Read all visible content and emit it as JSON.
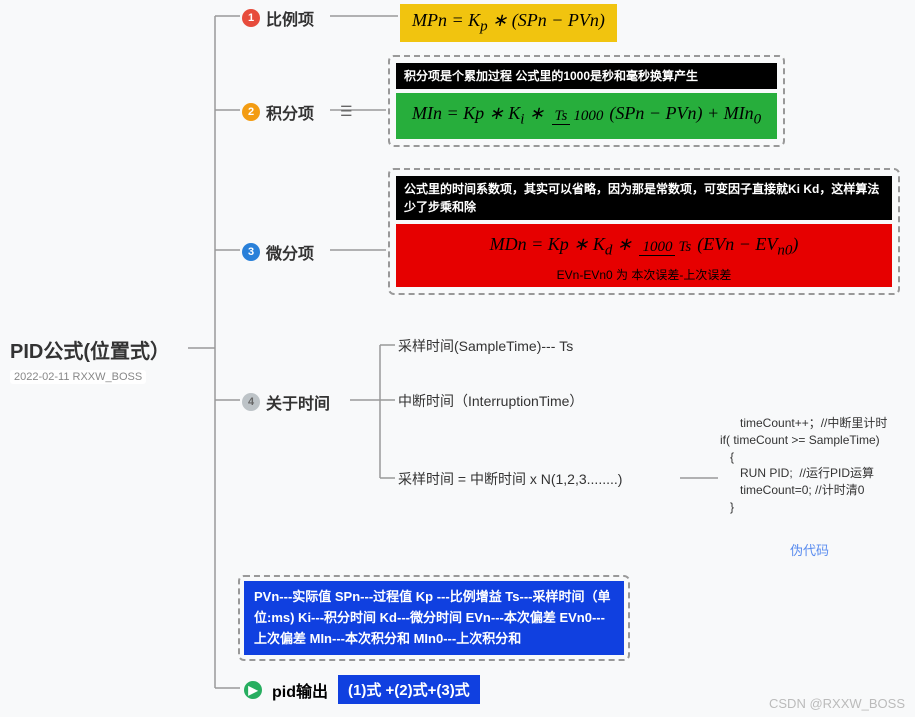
{
  "root": {
    "title": "PID公式(位置式）",
    "subtitle": "2022-02-11 RXXW_BOSS"
  },
  "branches": {
    "b1": {
      "num": "1",
      "label": "比例项",
      "formula_html": "<i>MPn</i> = <i>K<sub>p</sub></i> ∗ (<i>SPn</i> − <i>PVn</i>)"
    },
    "b2": {
      "num": "2",
      "label": "积分项",
      "note": "积分项是个累加过程 公式里的1000是秒和毫秒换算产生",
      "formula_html": "<i>MIn</i> = <i>Kp</i> ∗ <i>K<sub>i</sub></i> ∗ <span class='frac'><span class='top'><i>Ts</i></span><span class='bot'>1000</span></span>(<i>SPn</i> − <i>PVn</i>) + <i>MIn</i><sub>0</sub>"
    },
    "b3": {
      "num": "3",
      "label": "微分项",
      "note": "公式里的时间系数项，其实可以省略，因为那是常数项，可变因子直接就Ki Kd，这样算法少了步乘和除",
      "formula_html": "<i>MDn</i> = <i>Kp</i> ∗ <i>K<sub>d</sub></i> ∗ <span class='frac'><span class='top'>1000</span><span class='bot'><i>Ts</i></span></span>(<i>EVn</i> − <i>EV</i><sub><i>n</i>0</sub>)",
      "subnote": "EVn-EVn0 为 本次误差-上次误差"
    },
    "b4": {
      "num": "4",
      "label": "关于时间",
      "items": {
        "t1": "采样时间(SampleTime)--- Ts",
        "t2": "中断时间（InterruptionTime）",
        "t3": "采样时间 = 中断时间 x  N(1,2,3........)"
      }
    }
  },
  "pseudo": {
    "code": "      timeCount++；//中断里计时\nif( timeCount >= SampleTime)\n   {\n      RUN PID;  //运行PID运算\n      timeCount=0; //计时清0\n   }",
    "label": "伪代码"
  },
  "legend": "PVn---实际值   SPn---过程值  Kp ---比例增益  Ts---采样时间（单位:ms) Ki---积分时间 Kd---微分时间 EVn---本次偏差 EVn0---上次偏差 MIn---本次积分和  MIn0---上次积分和",
  "pidout": {
    "label": "pid输出",
    "formula": "(1)式 +(2)式+(3)式"
  },
  "watermark": "CSDN @RXXW_BOSS",
  "colors": {
    "bg": "#f8f9fa",
    "yellow": "#f1c40f",
    "green": "#27ae3c",
    "red": "#e60000",
    "blue": "#1040e0",
    "line": "#999999"
  }
}
